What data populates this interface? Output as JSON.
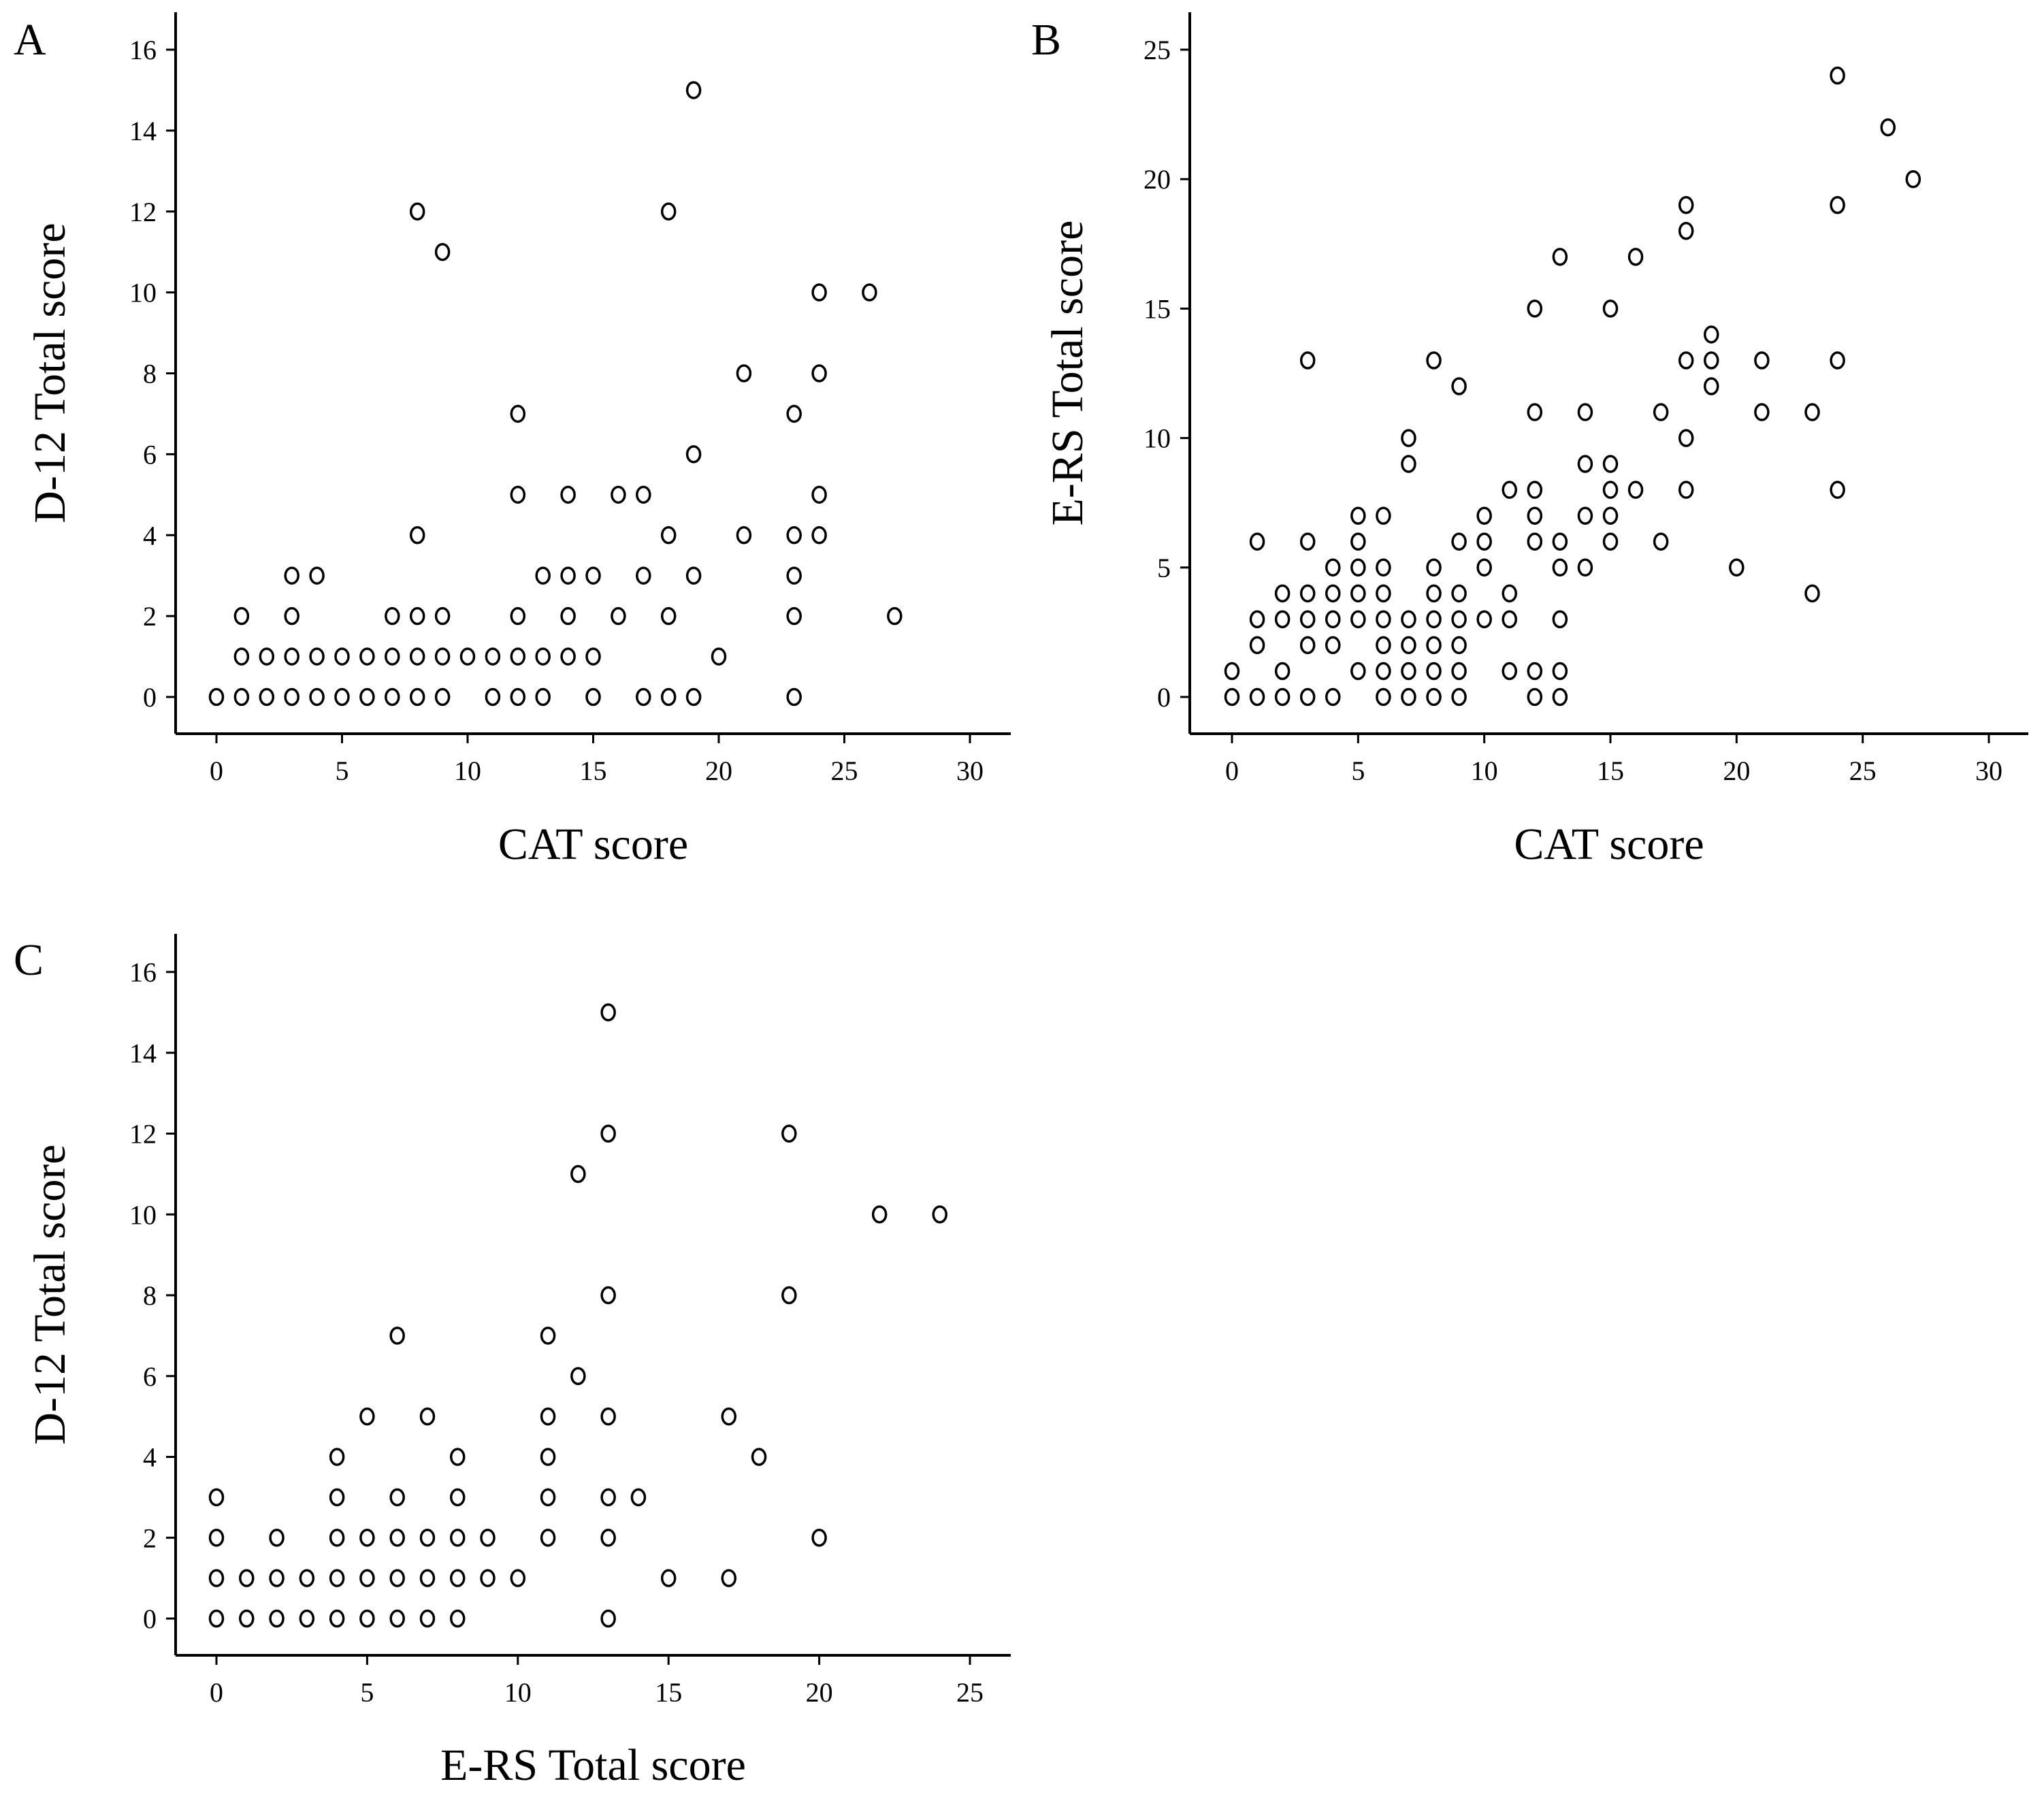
{
  "chart_data": [
    {
      "panel_label": "A",
      "type": "scatter",
      "xlabel": "CAT score",
      "ylabel": "D-12 Total score",
      "xlim": [
        0,
        30
      ],
      "ylim": [
        0,
        16
      ],
      "xticks": [
        0,
        5,
        10,
        15,
        20,
        25,
        30
      ],
      "yticks": [
        0,
        2,
        4,
        6,
        8,
        10,
        12,
        14,
        16
      ],
      "grid": false,
      "marker": "open-circle",
      "points": [
        [
          0,
          0
        ],
        [
          1,
          0
        ],
        [
          2,
          0
        ],
        [
          3,
          0
        ],
        [
          4,
          0
        ],
        [
          5,
          0
        ],
        [
          6,
          0
        ],
        [
          7,
          0
        ],
        [
          8,
          0
        ],
        [
          9,
          0
        ],
        [
          11,
          0
        ],
        [
          12,
          0
        ],
        [
          13,
          0
        ],
        [
          15,
          0
        ],
        [
          17,
          0
        ],
        [
          18,
          0
        ],
        [
          19,
          0
        ],
        [
          23,
          0
        ],
        [
          1,
          1
        ],
        [
          2,
          1
        ],
        [
          3,
          1
        ],
        [
          4,
          1
        ],
        [
          5,
          1
        ],
        [
          6,
          1
        ],
        [
          7,
          1
        ],
        [
          8,
          1
        ],
        [
          9,
          1
        ],
        [
          10,
          1
        ],
        [
          11,
          1
        ],
        [
          12,
          1
        ],
        [
          13,
          1
        ],
        [
          14,
          1
        ],
        [
          15,
          1
        ],
        [
          20,
          1
        ],
        [
          1,
          2
        ],
        [
          3,
          2
        ],
        [
          7,
          2
        ],
        [
          8,
          2
        ],
        [
          9,
          2
        ],
        [
          12,
          2
        ],
        [
          14,
          2
        ],
        [
          16,
          2
        ],
        [
          18,
          2
        ],
        [
          23,
          2
        ],
        [
          27,
          2
        ],
        [
          3,
          3
        ],
        [
          4,
          3
        ],
        [
          13,
          3
        ],
        [
          14,
          3
        ],
        [
          15,
          3
        ],
        [
          17,
          3
        ],
        [
          19,
          3
        ],
        [
          23,
          3
        ],
        [
          8,
          4
        ],
        [
          18,
          4
        ],
        [
          21,
          4
        ],
        [
          23,
          4
        ],
        [
          24,
          4
        ],
        [
          12,
          5
        ],
        [
          14,
          5
        ],
        [
          16,
          5
        ],
        [
          17,
          5
        ],
        [
          24,
          5
        ],
        [
          19,
          6
        ],
        [
          12,
          7
        ],
        [
          23,
          7
        ],
        [
          21,
          8
        ],
        [
          24,
          8
        ],
        [
          24,
          10
        ],
        [
          26,
          10
        ],
        [
          9,
          11
        ],
        [
          8,
          12
        ],
        [
          18,
          12
        ],
        [
          19,
          15
        ]
      ]
    },
    {
      "panel_label": "B",
      "type": "scatter",
      "xlabel": "CAT score",
      "ylabel": "E-RS Total score",
      "xlim": [
        0,
        30
      ],
      "ylim": [
        0,
        25
      ],
      "xticks": [
        0,
        5,
        10,
        15,
        20,
        25,
        30
      ],
      "yticks": [
        0,
        5,
        10,
        15,
        20,
        25
      ],
      "grid": false,
      "marker": "open-circle",
      "points": [
        [
          0,
          0
        ],
        [
          1,
          0
        ],
        [
          2,
          0
        ],
        [
          3,
          0
        ],
        [
          4,
          0
        ],
        [
          6,
          0
        ],
        [
          7,
          0
        ],
        [
          8,
          0
        ],
        [
          9,
          0
        ],
        [
          12,
          0
        ],
        [
          13,
          0
        ],
        [
          0,
          1
        ],
        [
          2,
          1
        ],
        [
          5,
          1
        ],
        [
          6,
          1
        ],
        [
          7,
          1
        ],
        [
          8,
          1
        ],
        [
          9,
          1
        ],
        [
          11,
          1
        ],
        [
          12,
          1
        ],
        [
          13,
          1
        ],
        [
          1,
          2
        ],
        [
          3,
          2
        ],
        [
          4,
          2
        ],
        [
          6,
          2
        ],
        [
          7,
          2
        ],
        [
          8,
          2
        ],
        [
          9,
          2
        ],
        [
          1,
          3
        ],
        [
          2,
          3
        ],
        [
          3,
          3
        ],
        [
          4,
          3
        ],
        [
          5,
          3
        ],
        [
          6,
          3
        ],
        [
          7,
          3
        ],
        [
          8,
          3
        ],
        [
          9,
          3
        ],
        [
          10,
          3
        ],
        [
          11,
          3
        ],
        [
          13,
          3
        ],
        [
          2,
          4
        ],
        [
          3,
          4
        ],
        [
          4,
          4
        ],
        [
          5,
          4
        ],
        [
          6,
          4
        ],
        [
          8,
          4
        ],
        [
          9,
          4
        ],
        [
          11,
          4
        ],
        [
          23,
          4
        ],
        [
          4,
          5
        ],
        [
          5,
          5
        ],
        [
          6,
          5
        ],
        [
          8,
          5
        ],
        [
          10,
          5
        ],
        [
          13,
          5
        ],
        [
          14,
          5
        ],
        [
          20,
          5
        ],
        [
          1,
          6
        ],
        [
          3,
          6
        ],
        [
          5,
          6
        ],
        [
          9,
          6
        ],
        [
          10,
          6
        ],
        [
          12,
          6
        ],
        [
          13,
          6
        ],
        [
          15,
          6
        ],
        [
          17,
          6
        ],
        [
          5,
          7
        ],
        [
          6,
          7
        ],
        [
          10,
          7
        ],
        [
          12,
          7
        ],
        [
          14,
          7
        ],
        [
          15,
          7
        ],
        [
          11,
          8
        ],
        [
          12,
          8
        ],
        [
          15,
          8
        ],
        [
          16,
          8
        ],
        [
          18,
          8
        ],
        [
          24,
          8
        ],
        [
          7,
          9
        ],
        [
          14,
          9
        ],
        [
          15,
          9
        ],
        [
          7,
          10
        ],
        [
          18,
          10
        ],
        [
          12,
          11
        ],
        [
          14,
          11
        ],
        [
          17,
          11
        ],
        [
          21,
          11
        ],
        [
          23,
          11
        ],
        [
          9,
          12
        ],
        [
          19,
          12
        ],
        [
          3,
          13
        ],
        [
          8,
          13
        ],
        [
          18,
          13
        ],
        [
          19,
          13
        ],
        [
          21,
          13
        ],
        [
          24,
          13
        ],
        [
          19,
          14
        ],
        [
          12,
          15
        ],
        [
          15,
          15
        ],
        [
          13,
          17
        ],
        [
          16,
          17
        ],
        [
          18,
          18
        ],
        [
          18,
          19
        ],
        [
          24,
          19
        ],
        [
          27,
          20
        ],
        [
          26,
          22
        ],
        [
          24,
          24
        ]
      ]
    },
    {
      "panel_label": "C",
      "type": "scatter",
      "xlabel": "E-RS Total score",
      "ylabel": "D-12 Total score",
      "xlim": [
        0,
        25
      ],
      "ylim": [
        0,
        16
      ],
      "xticks": [
        0,
        5,
        10,
        15,
        20,
        25
      ],
      "yticks": [
        0,
        2,
        4,
        6,
        8,
        10,
        12,
        14,
        16
      ],
      "grid": false,
      "marker": "open-circle",
      "points": [
        [
          0,
          0
        ],
        [
          1,
          0
        ],
        [
          2,
          0
        ],
        [
          3,
          0
        ],
        [
          4,
          0
        ],
        [
          5,
          0
        ],
        [
          6,
          0
        ],
        [
          7,
          0
        ],
        [
          8,
          0
        ],
        [
          13,
          0
        ],
        [
          0,
          1
        ],
        [
          1,
          1
        ],
        [
          2,
          1
        ],
        [
          3,
          1
        ],
        [
          4,
          1
        ],
        [
          5,
          1
        ],
        [
          6,
          1
        ],
        [
          7,
          1
        ],
        [
          8,
          1
        ],
        [
          9,
          1
        ],
        [
          10,
          1
        ],
        [
          15,
          1
        ],
        [
          17,
          1
        ],
        [
          0,
          2
        ],
        [
          2,
          2
        ],
        [
          4,
          2
        ],
        [
          5,
          2
        ],
        [
          6,
          2
        ],
        [
          7,
          2
        ],
        [
          8,
          2
        ],
        [
          9,
          2
        ],
        [
          11,
          2
        ],
        [
          13,
          2
        ],
        [
          20,
          2
        ],
        [
          0,
          3
        ],
        [
          4,
          3
        ],
        [
          6,
          3
        ],
        [
          8,
          3
        ],
        [
          11,
          3
        ],
        [
          13,
          3
        ],
        [
          14,
          3
        ],
        [
          4,
          4
        ],
        [
          8,
          4
        ],
        [
          11,
          4
        ],
        [
          18,
          4
        ],
        [
          5,
          5
        ],
        [
          7,
          5
        ],
        [
          11,
          5
        ],
        [
          13,
          5
        ],
        [
          17,
          5
        ],
        [
          12,
          6
        ],
        [
          6,
          7
        ],
        [
          11,
          7
        ],
        [
          13,
          8
        ],
        [
          19,
          8
        ],
        [
          22,
          10
        ],
        [
          24,
          10
        ],
        [
          12,
          11
        ],
        [
          13,
          12
        ],
        [
          19,
          12
        ],
        [
          13,
          15
        ]
      ]
    }
  ]
}
